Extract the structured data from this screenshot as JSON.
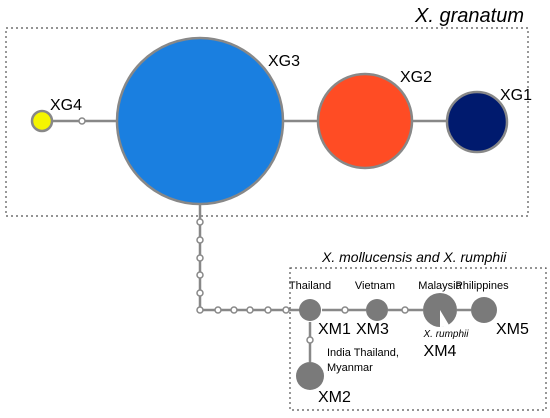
{
  "top_group": {
    "title": "X. granatum",
    "nodes": [
      {
        "label": "XG1"
      },
      {
        "label": "XG2"
      },
      {
        "label": "XG3"
      },
      {
        "label": "XG4"
      }
    ]
  },
  "bottom_group": {
    "title": "X. mollucensis and X. rumphii",
    "nodes": [
      {
        "label": "XM1",
        "location": "Thailand"
      },
      {
        "label": "XM2",
        "location_lines": [
          "India Thailand,",
          "Myanmar"
        ]
      },
      {
        "label": "XM3",
        "location": "Vietnam"
      },
      {
        "label": "XM4",
        "location": "Malaysia",
        "note": "X. rumphii"
      },
      {
        "label": "XM5",
        "location": "Philippines"
      }
    ]
  }
}
